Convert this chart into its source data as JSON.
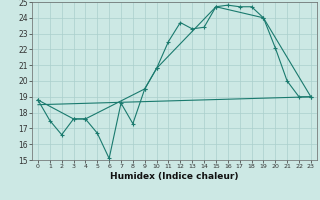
{
  "xlabel": "Humidex (Indice chaleur)",
  "xlim": [
    -0.5,
    23.5
  ],
  "ylim": [
    15,
    25
  ],
  "yticks": [
    15,
    16,
    17,
    18,
    19,
    20,
    21,
    22,
    23,
    24,
    25
  ],
  "xticks": [
    0,
    1,
    2,
    3,
    4,
    5,
    6,
    7,
    8,
    9,
    10,
    11,
    12,
    13,
    14,
    15,
    16,
    17,
    18,
    19,
    20,
    21,
    22,
    23
  ],
  "bg_color": "#cce8e4",
  "line_color": "#1a7a6e",
  "grid_color": "#aacfcc",
  "series1": {
    "x": [
      0,
      1,
      2,
      3,
      4,
      5,
      6,
      7,
      8,
      9,
      10,
      11,
      12,
      13,
      14,
      15,
      16,
      17,
      18,
      19,
      20,
      21,
      22,
      23
    ],
    "y": [
      18.8,
      17.5,
      16.6,
      17.6,
      17.6,
      16.7,
      15.1,
      18.6,
      17.3,
      19.5,
      20.8,
      22.5,
      23.7,
      23.3,
      23.4,
      24.7,
      24.8,
      24.7,
      24.7,
      24.0,
      22.1,
      20.0,
      19.0,
      19.0
    ]
  },
  "series2": {
    "x": [
      0,
      3,
      4,
      9,
      10,
      15,
      19,
      23
    ],
    "y": [
      18.8,
      17.6,
      17.6,
      19.5,
      20.8,
      24.7,
      24.0,
      19.0
    ]
  },
  "series3": {
    "x": [
      0,
      23
    ],
    "y": [
      18.5,
      19.0
    ]
  }
}
